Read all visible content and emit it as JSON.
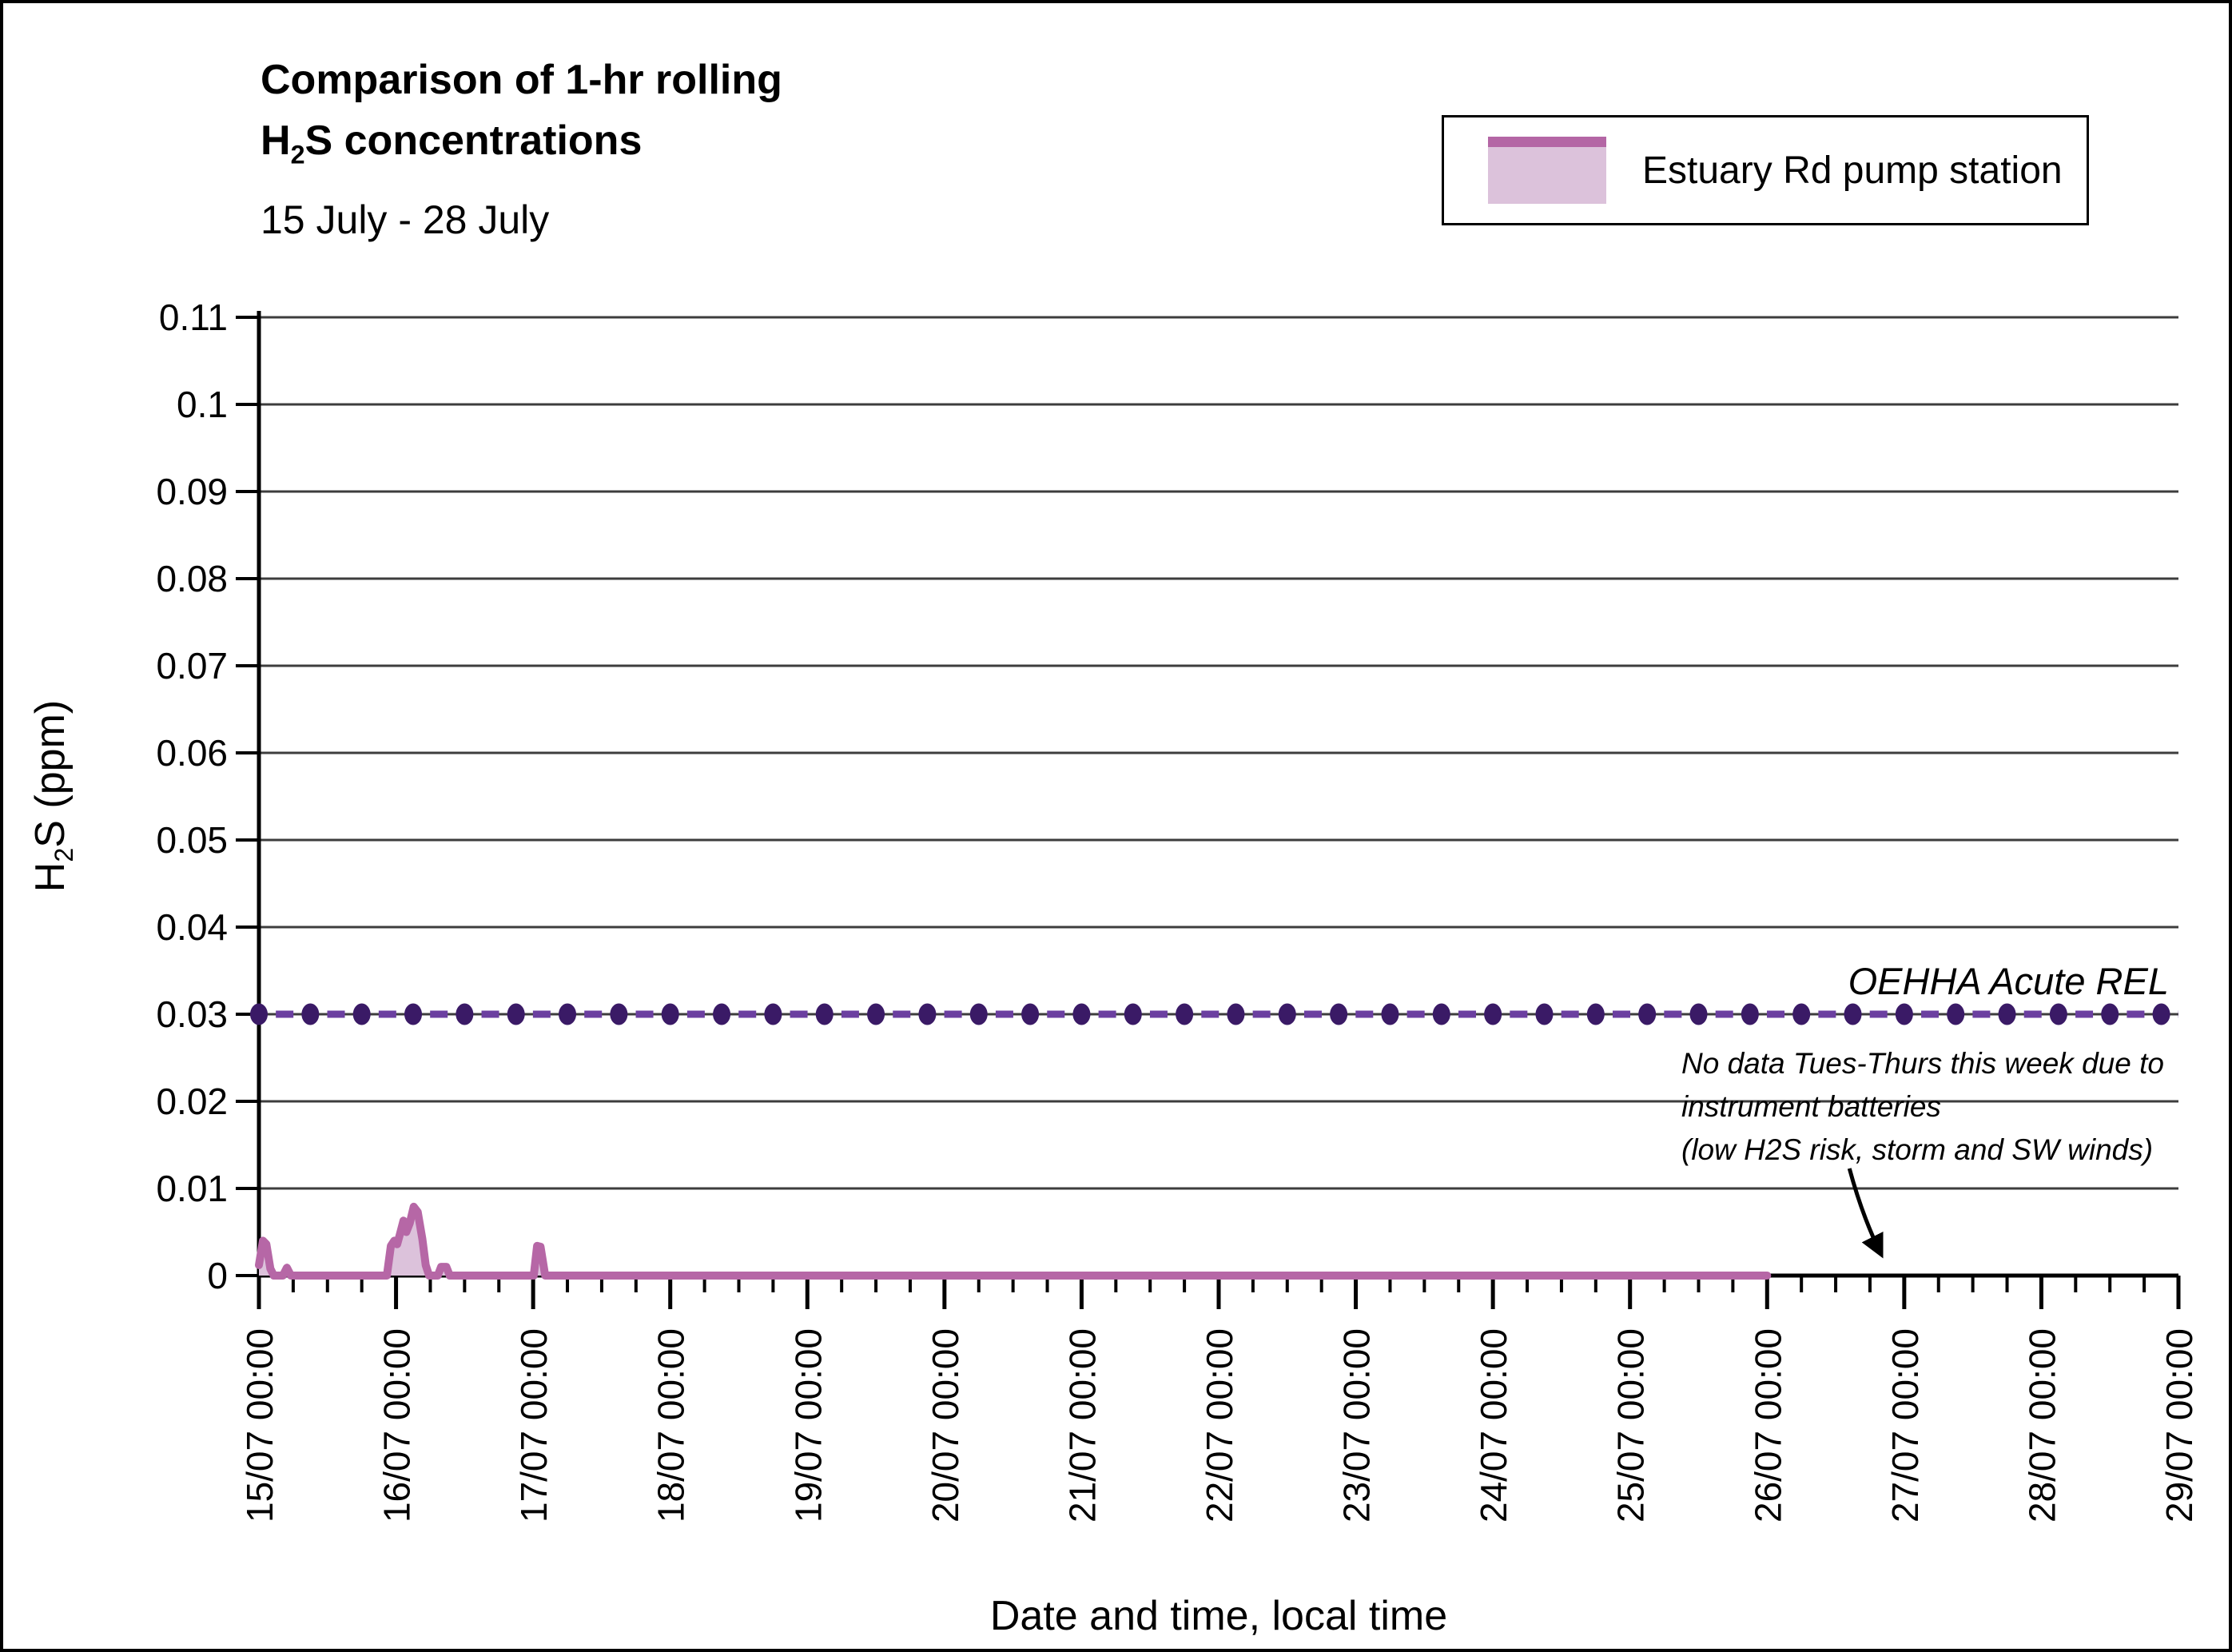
{
  "figure": {
    "title_line1": "Comparison of 1-hr rolling",
    "title_line2": {
      "pre": "H",
      "sub": "2",
      "post": "S concentrations"
    },
    "subtitle": "15 July - 28 July",
    "legend": {
      "label": "Estuary Rd pump station",
      "swatch_fill": "#dcc2db",
      "swatch_line": "#b466a5"
    },
    "x_axis_title": "Date and time, local time",
    "y_axis_title": {
      "pre": "H",
      "sub": "2",
      "post": "S (ppm)"
    },
    "annotation": {
      "line1": "No data Tues-Thurs this week due to",
      "line2": "instrument batteries",
      "line3": "(low H2S risk, storm and SW winds)"
    },
    "rel_label": "OEHHA Acute REL"
  },
  "chart_data": {
    "type": "area",
    "title": "Comparison of 1-hr rolling H2S concentrations",
    "subtitle": "15 July - 28 July",
    "xlabel": "Date and time, local time",
    "ylabel": "H2S (ppm)",
    "ylim": [
      0,
      0.11
    ],
    "grid": true,
    "legend_position": "top-right",
    "y_tick_values": [
      0,
      0.01,
      0.02,
      0.03,
      0.04,
      0.05,
      0.06,
      0.07,
      0.08,
      0.09,
      0.1,
      0.11
    ],
    "y_tick_labels": [
      "0",
      "0.01",
      "0.02",
      "0.03",
      "0.04",
      "0.05",
      "0.06",
      "0.07",
      "0.08",
      "0.09",
      "0.1",
      "0.11"
    ],
    "x_range_hours": [
      0,
      336
    ],
    "x_minor_tick_interval_hours": 6,
    "x_ticks": [
      {
        "hours": 0,
        "label": "15/07 00:00"
      },
      {
        "hours": 24,
        "label": "16/07 00:00"
      },
      {
        "hours": 48,
        "label": "17/07 00:00"
      },
      {
        "hours": 72,
        "label": "18/07 00:00"
      },
      {
        "hours": 96,
        "label": "19/07 00:00"
      },
      {
        "hours": 120,
        "label": "20/07 00:00"
      },
      {
        "hours": 144,
        "label": "21/07 00:00"
      },
      {
        "hours": 168,
        "label": "22/07 00:00"
      },
      {
        "hours": 192,
        "label": "23/07 00:00"
      },
      {
        "hours": 216,
        "label": "24/07 00:00"
      },
      {
        "hours": 240,
        "label": "25/07 00:00"
      },
      {
        "hours": 264,
        "label": "26/07 00:00"
      },
      {
        "hours": 288,
        "label": "27/07 00:00"
      },
      {
        "hours": 312,
        "label": "28/07 00:00"
      },
      {
        "hours": 336,
        "label": "29/07 00:00"
      }
    ],
    "series": [
      {
        "name": "Estuary Rd pump station",
        "type": "area",
        "line_color": "#b667a6",
        "fill_color": "#dcc2db",
        "line_width": 10,
        "points_hours_ppm": [
          [
            0,
            0.0012
          ],
          [
            0.7,
            0.004
          ],
          [
            1.3,
            0.0036
          ],
          [
            2,
            0.0008
          ],
          [
            2.6,
            0
          ],
          [
            4.2,
            0
          ],
          [
            4.9,
            0.0009
          ],
          [
            5.6,
            0
          ],
          [
            22.4,
            0
          ],
          [
            23.1,
            0.0034
          ],
          [
            23.7,
            0.004
          ],
          [
            24.2,
            0.0036
          ],
          [
            24.7,
            0.0048
          ],
          [
            25.3,
            0.0063
          ],
          [
            25.8,
            0.005
          ],
          [
            26.4,
            0.006
          ],
          [
            27.1,
            0.0079
          ],
          [
            27.8,
            0.0073
          ],
          [
            28.6,
            0.0042
          ],
          [
            29.2,
            0.0012
          ],
          [
            29.8,
            0
          ],
          [
            31.3,
            0
          ],
          [
            31.9,
            0.001
          ],
          [
            32.8,
            0.001
          ],
          [
            33.4,
            0
          ],
          [
            48.1,
            0
          ],
          [
            48.7,
            0.0034
          ],
          [
            49.3,
            0.0033
          ],
          [
            50.1,
            0
          ],
          [
            264,
            0
          ]
        ]
      },
      {
        "name": "OEHHA Acute REL",
        "type": "reference-line",
        "value_ppm": 0.03,
        "style": "dashed-with-markers",
        "span_hours": [
          0,
          336
        ],
        "marker_interval_hours": 9,
        "dash_color": "#6b3fa0",
        "marker_color": "#3a1a66"
      }
    ],
    "annotation": {
      "text": [
        "No data Tues-Thurs this week due to",
        "instrument batteries",
        "(low H2S risk, storm and SW winds)"
      ],
      "style": "italic",
      "arrow_points_to_hours": 284
    },
    "data_gap": {
      "series": "Estuary Rd pump station",
      "from_hours": 264,
      "to_hours": 336
    }
  }
}
